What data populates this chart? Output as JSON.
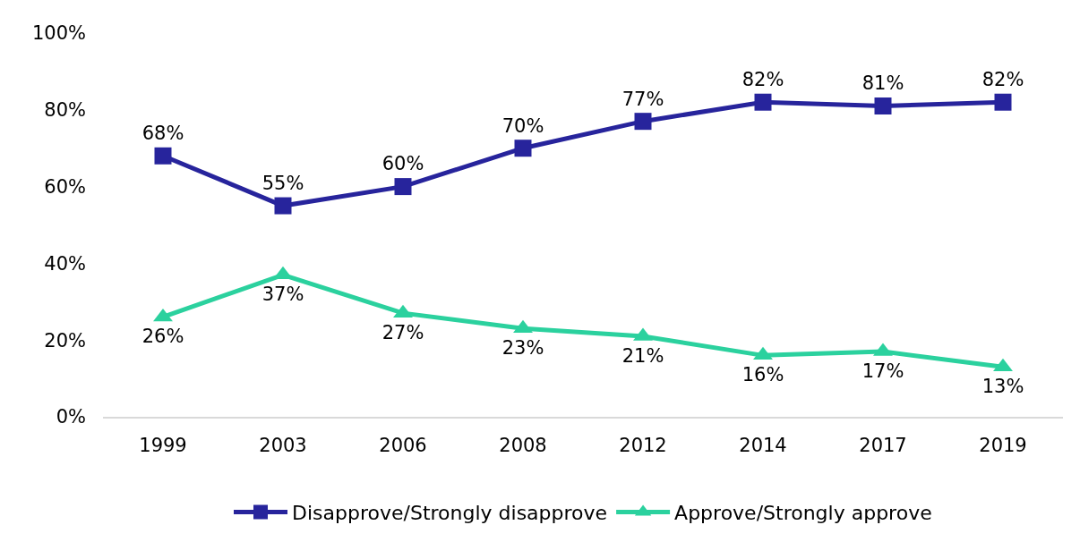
{
  "chart_data": {
    "type": "line",
    "categories": [
      "1999",
      "2003",
      "2006",
      "2008",
      "2012",
      "2014",
      "2017",
      "2019"
    ],
    "ylim": [
      0,
      100
    ],
    "yticks": [
      {
        "value": 0,
        "label": "0%"
      },
      {
        "value": 20,
        "label": "20%"
      },
      {
        "value": 40,
        "label": "40%"
      },
      {
        "value": 60,
        "label": "60%"
      },
      {
        "value": 80,
        "label": "80%"
      },
      {
        "value": 100,
        "label": "100%"
      }
    ],
    "grid": false,
    "legend": "bottom",
    "line_style": "solid",
    "series": [
      {
        "name": "Disapprove/Strongly disapprove",
        "color": "#27249c",
        "marker": "square",
        "values": [
          68,
          55,
          60,
          70,
          77,
          82,
          81,
          82
        ],
        "value_labels": [
          "68%",
          "55%",
          "60%",
          "70%",
          "77%",
          "82%",
          "81%",
          "82%"
        ]
      },
      {
        "name": "Approve/Strongly approve",
        "color": "#2bd19e",
        "marker": "triangle",
        "values": [
          26,
          37,
          27,
          23,
          21,
          16,
          17,
          13
        ],
        "value_labels": [
          "26%",
          "37%",
          "27%",
          "23%",
          "21%",
          "16%",
          "17%",
          "13%"
        ]
      }
    ]
  }
}
